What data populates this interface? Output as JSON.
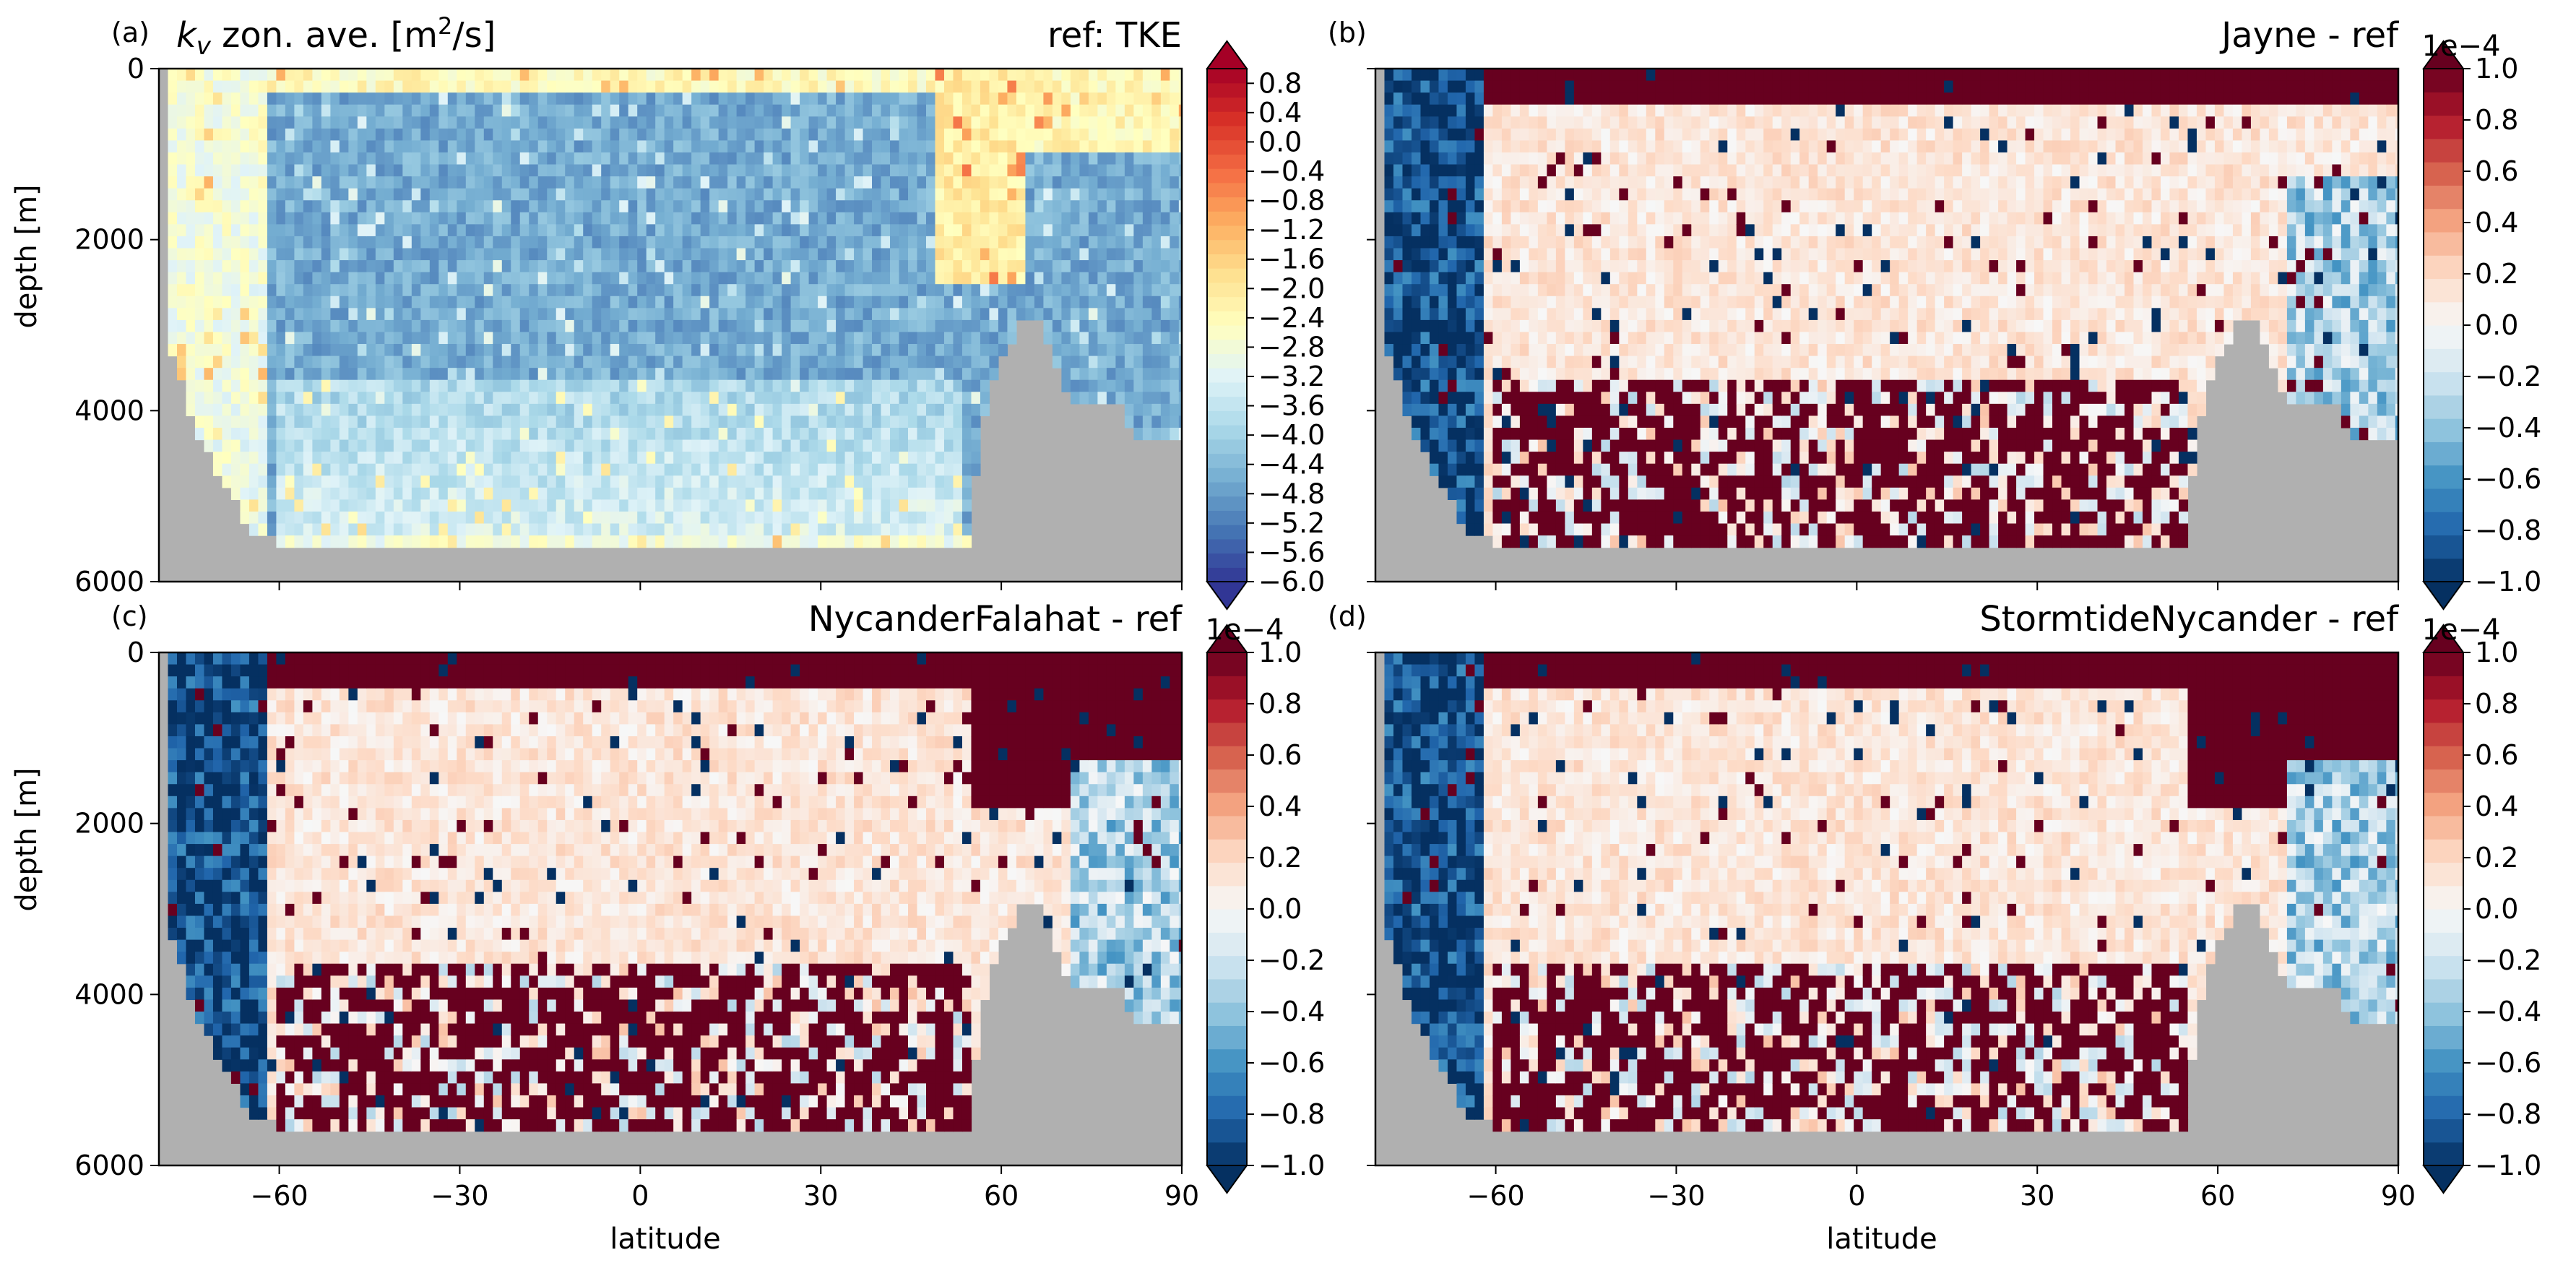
{
  "figure": {
    "xlabel": "latitude",
    "ylabel": "depth [m]",
    "land_color": "#b0b0b0"
  },
  "chart_data": [
    {
      "type": "heatmap",
      "letter": "(a)",
      "title_left_math": "k",
      "title_left_sub": "v",
      "title_left_text": " zon. ave. [m",
      "title_left_sup": "2",
      "title_left_end": "/s]",
      "title_right": "ref: TKE",
      "cmap": "RdYlBu_r",
      "xlim": [
        -80,
        90
      ],
      "ylim": [
        6000,
        0
      ],
      "xticks": [
        -60,
        -30,
        0,
        30,
        60,
        90
      ],
      "xticklabels_visible": false,
      "yticks": [
        0,
        2000,
        4000,
        6000
      ],
      "ytick_labels": [
        "0",
        "2000",
        "4000",
        "6000"
      ],
      "ylabel_visible": true,
      "colorbar": {
        "vmin": -6.0,
        "vmax": 1.0,
        "extend": "both",
        "exponent": "",
        "labels": [
          "0.8",
          "0.4",
          "0.0",
          "−0.4",
          "−0.8",
          "−1.2",
          "−1.6",
          "−2.0",
          "−2.4",
          "−2.8",
          "−3.2",
          "−3.6",
          "−4.0",
          "−4.4",
          "−4.8",
          "−5.2",
          "−5.6",
          "−6.0"
        ],
        "values": [
          0.8,
          0.4,
          0.0,
          -0.4,
          -0.8,
          -1.2,
          -1.6,
          -2.0,
          -2.4,
          -2.8,
          -3.2,
          -3.6,
          -4.0,
          -4.4,
          -4.8,
          -5.2,
          -5.6,
          -6.0
        ]
      }
    },
    {
      "type": "heatmap",
      "letter": "(b)",
      "title_right": "Jayne - ref",
      "cmap": "RdBu_r",
      "xlim": [
        -80,
        90
      ],
      "ylim": [
        6000,
        0
      ],
      "xticks": [
        -60,
        -30,
        0,
        30,
        60,
        90
      ],
      "xticklabels_visible": false,
      "yticks": [
        0,
        2000,
        4000,
        6000
      ],
      "ytick_labels": [],
      "ylabel_visible": false,
      "colorbar": {
        "vmin": -1.0,
        "vmax": 1.0,
        "extend": "both",
        "exponent": "1e−4",
        "labels": [
          "1.0",
          "0.8",
          "0.6",
          "0.4",
          "0.2",
          "0.0",
          "−0.2",
          "−0.4",
          "−0.6",
          "−0.8",
          "−1.0"
        ],
        "values": [
          1.0,
          0.8,
          0.6,
          0.4,
          0.2,
          0.0,
          -0.2,
          -0.4,
          -0.6,
          -0.8,
          -1.0
        ]
      }
    },
    {
      "type": "heatmap",
      "letter": "(c)",
      "title_right": "NycanderFalahat - ref",
      "cmap": "RdBu_r",
      "xlim": [
        -80,
        90
      ],
      "ylim": [
        6000,
        0
      ],
      "xticks": [
        -60,
        -30,
        0,
        30,
        60,
        90
      ],
      "xticklabels_visible": true,
      "xtick_labels": [
        "−60",
        "−30",
        "0",
        "30",
        "60",
        "90"
      ],
      "yticks": [
        0,
        2000,
        4000,
        6000
      ],
      "ytick_labels": [
        "0",
        "2000",
        "4000",
        "6000"
      ],
      "ylabel_visible": true,
      "colorbar": {
        "vmin": -1.0,
        "vmax": 1.0,
        "extend": "both",
        "exponent": "1e−4",
        "labels": [
          "1.0",
          "0.8",
          "0.6",
          "0.4",
          "0.2",
          "0.0",
          "−0.2",
          "−0.4",
          "−0.6",
          "−0.8",
          "−1.0"
        ],
        "values": [
          1.0,
          0.8,
          0.6,
          0.4,
          0.2,
          0.0,
          -0.2,
          -0.4,
          -0.6,
          -0.8,
          -1.0
        ]
      }
    },
    {
      "type": "heatmap",
      "letter": "(d)",
      "title_right": "StormtideNycander - ref",
      "cmap": "RdBu_r",
      "xlim": [
        -80,
        90
      ],
      "ylim": [
        6000,
        0
      ],
      "xticks": [
        -60,
        -30,
        0,
        30,
        60,
        90
      ],
      "xticklabels_visible": true,
      "xtick_labels": [
        "−60",
        "−30",
        "0",
        "30",
        "60",
        "90"
      ],
      "yticks": [
        0,
        2000,
        4000,
        6000
      ],
      "ytick_labels": [],
      "ylabel_visible": false,
      "colorbar": {
        "vmin": -1.0,
        "vmax": 1.0,
        "extend": "both",
        "exponent": "1e−4",
        "labels": [
          "1.0",
          "0.8",
          "0.6",
          "0.4",
          "0.2",
          "0.0",
          "−0.2",
          "−0.4",
          "−0.6",
          "−0.8",
          "−1.0"
        ],
        "values": [
          1.0,
          0.8,
          0.6,
          0.4,
          0.2,
          0.0,
          -0.2,
          -0.4,
          -0.6,
          -0.8,
          -1.0
        ]
      }
    }
  ]
}
